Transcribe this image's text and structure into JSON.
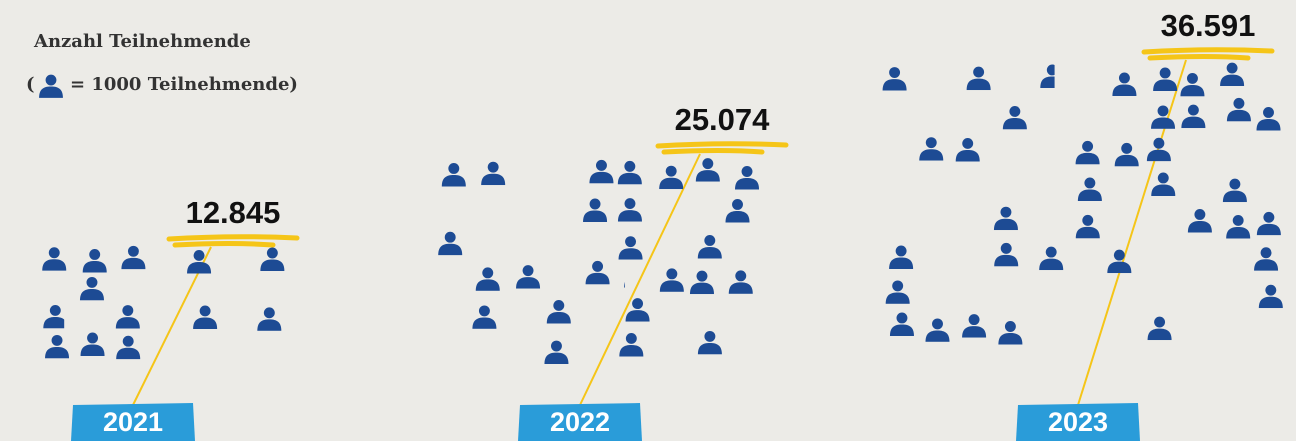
{
  "chart_data": {
    "type": "pictogram",
    "title": "Anzahl Teilnehmende",
    "legend_open": "(",
    "legend_text": "= 1000 Teilnehmende)",
    "icon_unit": 1000,
    "categories": [
      "2021",
      "2022",
      "2023"
    ],
    "values": [
      12845,
      25074,
      36591
    ],
    "value_labels": [
      "12.845",
      "25.074",
      "36.591"
    ],
    "color": "#1d4b94",
    "badge_color": "#2a9cd9",
    "accent_color": "#f5c518"
  }
}
